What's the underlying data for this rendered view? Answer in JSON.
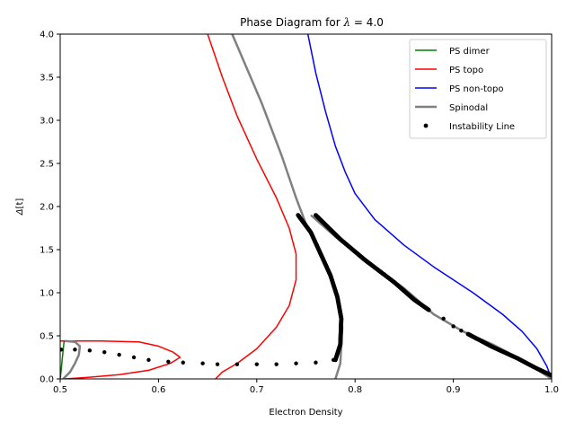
{
  "chart_data": {
    "type": "line",
    "title_prefix": "Phase Diagram for ",
    "title_symbol": "λ",
    "title_suffix": " =  4.0",
    "xlabel": "Electron Density",
    "ylabel_main": "Δ",
    "ylabel_unit": "[t]",
    "xlim": [
      0.5,
      1.0
    ],
    "ylim": [
      0.0,
      4.0
    ],
    "xticks": [
      "0.5",
      "0.6",
      "0.7",
      "0.8",
      "0.9",
      "1.0"
    ],
    "yticks": [
      "0.0",
      "0.5",
      "1.0",
      "1.5",
      "2.0",
      "2.5",
      "3.0",
      "3.5",
      "4.0"
    ],
    "grid": false,
    "legend_position": "top-right",
    "series": [
      {
        "name": "PS dimer",
        "color": "#008000",
        "style": "line",
        "points": [
          [
            0.5,
            0.0
          ],
          [
            0.501,
            0.1
          ],
          [
            0.502,
            0.22
          ],
          [
            0.503,
            0.33
          ],
          [
            0.504,
            0.44
          ]
        ]
      },
      {
        "name": "PS topo",
        "color": "#ff0000",
        "style": "line",
        "points": [
          [
            0.5,
            0.44
          ],
          [
            0.54,
            0.44
          ],
          [
            0.58,
            0.43
          ],
          [
            0.6,
            0.38
          ],
          [
            0.615,
            0.31
          ],
          [
            0.622,
            0.25
          ],
          [
            0.612,
            0.18
          ],
          [
            0.59,
            0.1
          ],
          [
            0.56,
            0.05
          ],
          [
            0.53,
            0.02
          ],
          [
            0.505,
            0.0
          ]
        ],
        "points2": [
          [
            0.658,
            0.0
          ],
          [
            0.665,
            0.08
          ],
          [
            0.68,
            0.18
          ],
          [
            0.7,
            0.35
          ],
          [
            0.72,
            0.6
          ],
          [
            0.733,
            0.85
          ],
          [
            0.74,
            1.15
          ],
          [
            0.74,
            1.45
          ],
          [
            0.733,
            1.75
          ],
          [
            0.72,
            2.1
          ],
          [
            0.7,
            2.55
          ],
          [
            0.68,
            3.05
          ],
          [
            0.665,
            3.5
          ],
          [
            0.65,
            4.0
          ]
        ]
      },
      {
        "name": "PS non-topo",
        "color": "#0000ff",
        "style": "line",
        "points": [
          [
            0.752,
            4.0
          ],
          [
            0.76,
            3.55
          ],
          [
            0.77,
            3.1
          ],
          [
            0.78,
            2.7
          ],
          [
            0.79,
            2.4
          ],
          [
            0.8,
            2.15
          ],
          [
            0.82,
            1.85
          ],
          [
            0.85,
            1.55
          ],
          [
            0.88,
            1.3
          ],
          [
            0.92,
            1.0
          ],
          [
            0.95,
            0.75
          ],
          [
            0.97,
            0.55
          ],
          [
            0.985,
            0.35
          ],
          [
            0.995,
            0.15
          ],
          [
            1.0,
            0.0
          ]
        ]
      },
      {
        "name": "Spinodal",
        "color": "#808080",
        "style": "thick-line",
        "points": [
          [
            0.503,
            0.0
          ],
          [
            0.51,
            0.08
          ],
          [
            0.515,
            0.18
          ],
          [
            0.519,
            0.28
          ],
          [
            0.52,
            0.38
          ],
          [
            0.515,
            0.43
          ],
          [
            0.505,
            0.44
          ]
        ],
        "points2": [
          [
            0.78,
            0.0
          ],
          [
            0.785,
            0.18
          ],
          [
            0.787,
            0.6
          ],
          [
            0.783,
            0.95
          ],
          [
            0.775,
            1.2
          ],
          [
            0.762,
            1.5
          ],
          [
            0.75,
            1.8
          ],
          [
            0.74,
            2.1
          ],
          [
            0.725,
            2.6
          ],
          [
            0.705,
            3.2
          ],
          [
            0.69,
            3.6
          ],
          [
            0.675,
            4.0
          ]
        ],
        "points3": [
          [
            0.755,
            1.9
          ],
          [
            0.78,
            1.65
          ],
          [
            0.81,
            1.38
          ],
          [
            0.85,
            1.05
          ],
          [
            0.88,
            0.75
          ],
          [
            0.91,
            0.55
          ],
          [
            0.94,
            0.4
          ],
          [
            0.97,
            0.22
          ],
          [
            1.0,
            0.0
          ]
        ]
      },
      {
        "name": "Instability Line",
        "color": "#000000",
        "style": "markers",
        "points": [
          [
            0.501,
            0.34
          ],
          [
            0.515,
            0.34
          ],
          [
            0.53,
            0.33
          ],
          [
            0.545,
            0.31
          ],
          [
            0.56,
            0.28
          ],
          [
            0.575,
            0.25
          ],
          [
            0.59,
            0.22
          ],
          [
            0.61,
            0.2
          ],
          [
            0.625,
            0.19
          ],
          [
            0.645,
            0.18
          ],
          [
            0.66,
            0.17
          ],
          [
            0.68,
            0.17
          ],
          [
            0.7,
            0.17
          ],
          [
            0.72,
            0.17
          ],
          [
            0.74,
            0.18
          ],
          [
            0.76,
            0.19
          ],
          [
            0.778,
            0.22
          ]
        ],
        "dense_segments": [
          [
            [
              0.78,
              0.22
            ],
            [
              0.785,
              0.4
            ],
            [
              0.786,
              0.7
            ],
            [
              0.782,
              0.95
            ],
            [
              0.775,
              1.2
            ],
            [
              0.765,
              1.45
            ],
            [
              0.755,
              1.7
            ],
            [
              0.742,
              1.9
            ]
          ],
          [
            [
              0.76,
              1.9
            ],
            [
              0.785,
              1.62
            ],
            [
              0.81,
              1.38
            ],
            [
              0.84,
              1.12
            ],
            [
              0.86,
              0.92
            ],
            [
              0.875,
              0.8
            ]
          ],
          [
            [
              0.915,
              0.52
            ],
            [
              0.94,
              0.37
            ],
            [
              0.965,
              0.24
            ],
            [
              0.985,
              0.12
            ],
            [
              1.0,
              0.04
            ]
          ]
        ],
        "sparse_points": [
          [
            0.89,
            0.7
          ],
          [
            0.9,
            0.61
          ],
          [
            0.908,
            0.56
          ]
        ]
      }
    ]
  }
}
